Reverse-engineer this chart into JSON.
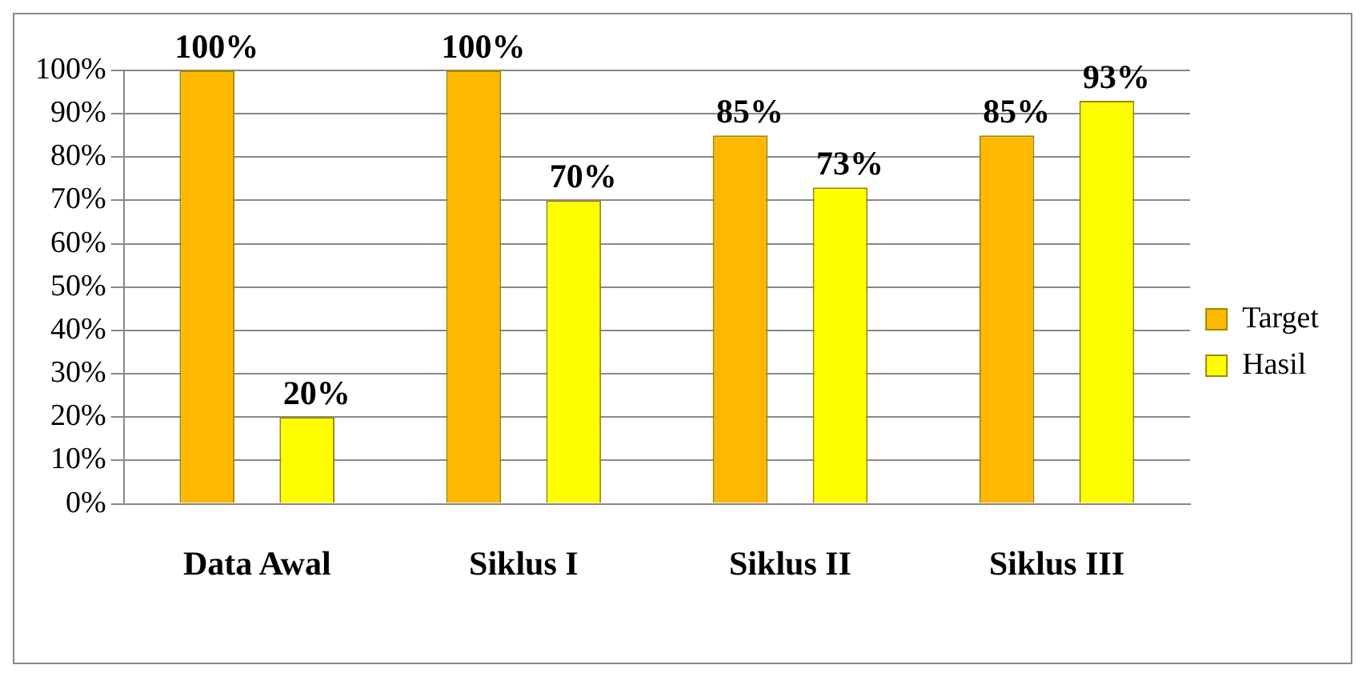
{
  "chart_data": {
    "type": "bar",
    "categories": [
      "Data Awal",
      "Siklus I",
      "Siklus II",
      "Siklus III"
    ],
    "series": [
      {
        "name": "Target",
        "color": "#ffb800",
        "values": [
          100,
          100,
          85,
          85
        ],
        "value_labels": [
          "100%",
          "100%",
          "85%",
          "85%"
        ]
      },
      {
        "name": "Hasil",
        "color": "#ffff00",
        "values": [
          20,
          70,
          73,
          93
        ],
        "value_labels": [
          "20%",
          "70%",
          "73%",
          "93%"
        ]
      }
    ],
    "ylim": [
      0,
      100
    ],
    "yticks": [
      {
        "value": 0,
        "label": "0%"
      },
      {
        "value": 10,
        "label": "10%"
      },
      {
        "value": 20,
        "label": "20%"
      },
      {
        "value": 30,
        "label": "30%"
      },
      {
        "value": 40,
        "label": "40%"
      },
      {
        "value": 50,
        "label": "50%"
      },
      {
        "value": 60,
        "label": "60%"
      },
      {
        "value": 70,
        "label": "70%"
      },
      {
        "value": 80,
        "label": "80%"
      },
      {
        "value": 90,
        "label": "90%"
      },
      {
        "value": 100,
        "label": "100%"
      }
    ],
    "grid": "y",
    "legend": "right"
  }
}
